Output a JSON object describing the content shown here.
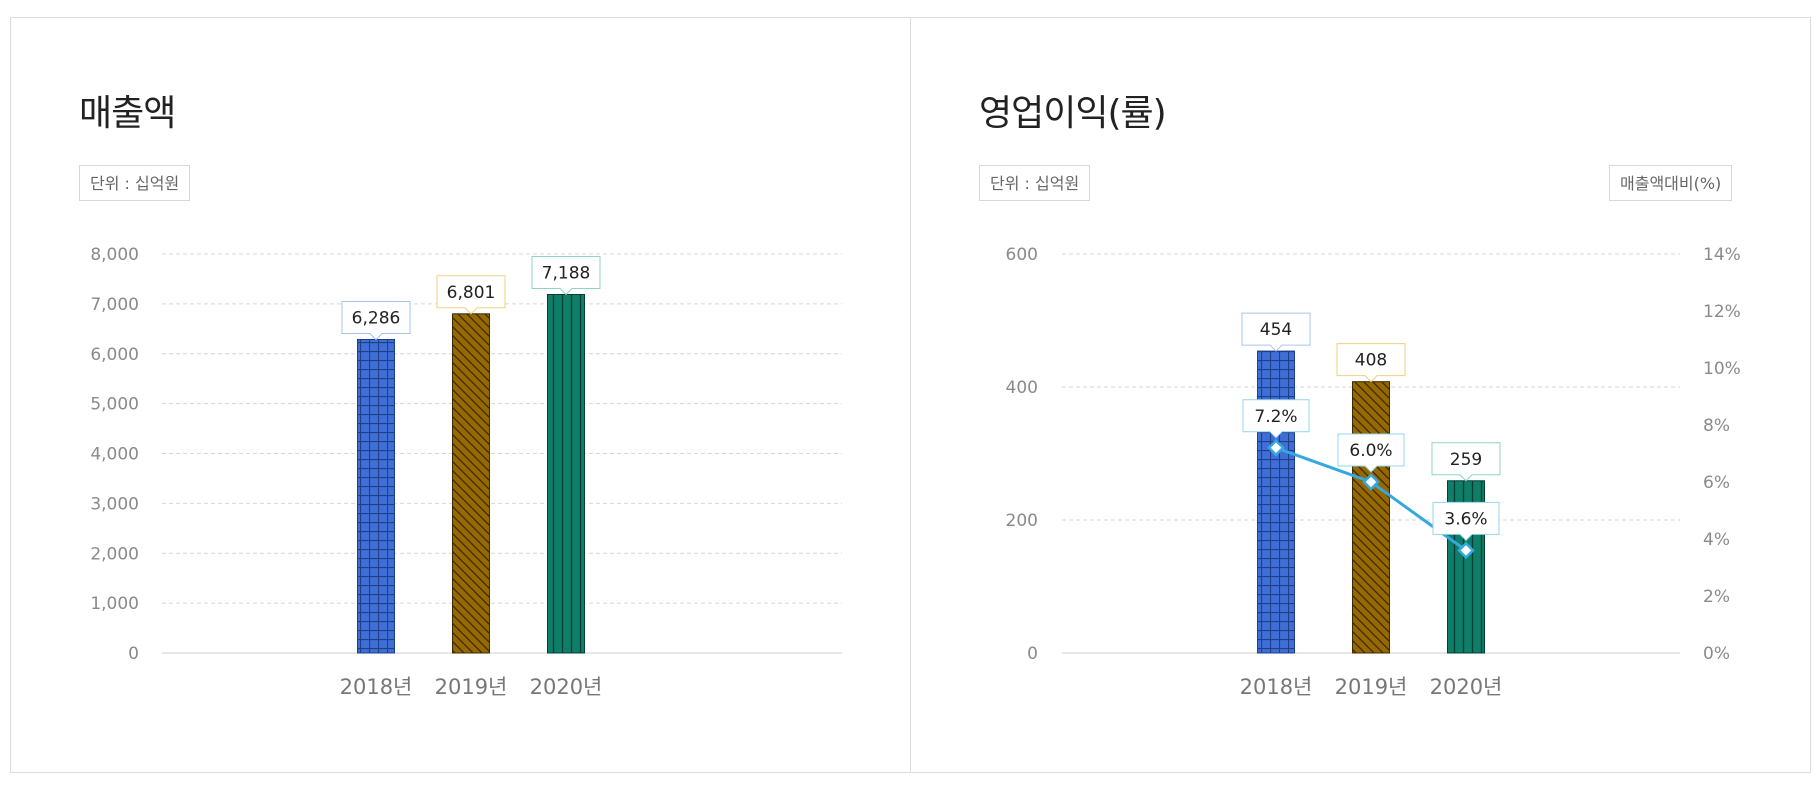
{
  "colors": {
    "blue": "#3f6ed6",
    "brown": "#956800",
    "green": "#0f7e68",
    "line": "#35a8e0",
    "box_blue": "#a9c4ee",
    "box_yellow": "#f1cf82",
    "box_green": "#8fd3c4",
    "box_pct": "#93d4ee"
  },
  "left": {
    "title": "매출액",
    "unit": "단위 : 십억원",
    "chart_data": {
      "type": "bar",
      "categories": [
        "2018년",
        "2019년",
        "2020년"
      ],
      "values": [
        6286,
        6801,
        7188
      ],
      "value_labels": [
        "6,286",
        "6,801",
        "7,188"
      ],
      "ylim": [
        0,
        8000
      ],
      "yticks": [
        "0",
        "1,000",
        "2,000",
        "3,000",
        "4,000",
        "5,000",
        "6,000",
        "7,000",
        "8,000"
      ],
      "grid": true
    }
  },
  "right": {
    "title": "영업이익(률)",
    "unit": "단위 : 십억원",
    "unit_right": "매출액대비(%)",
    "chart_data": {
      "type": "bar",
      "categories": [
        "2018년",
        "2019년",
        "2020년"
      ],
      "values": [
        454,
        408,
        259
      ],
      "value_labels": [
        "454",
        "408",
        "259"
      ],
      "ylim": [
        0,
        600
      ],
      "yticks": [
        "0",
        "200",
        "400",
        "600"
      ],
      "line": {
        "values": [
          7.2,
          6.0,
          3.6
        ],
        "value_labels": [
          "7.2%",
          "6.0%",
          "3.6%"
        ]
      },
      "y2lim": [
        0,
        14
      ],
      "y2ticks": [
        "0%",
        "2%",
        "4%",
        "6%",
        "8%",
        "10%",
        "12%",
        "14%"
      ],
      "grid": true
    }
  }
}
